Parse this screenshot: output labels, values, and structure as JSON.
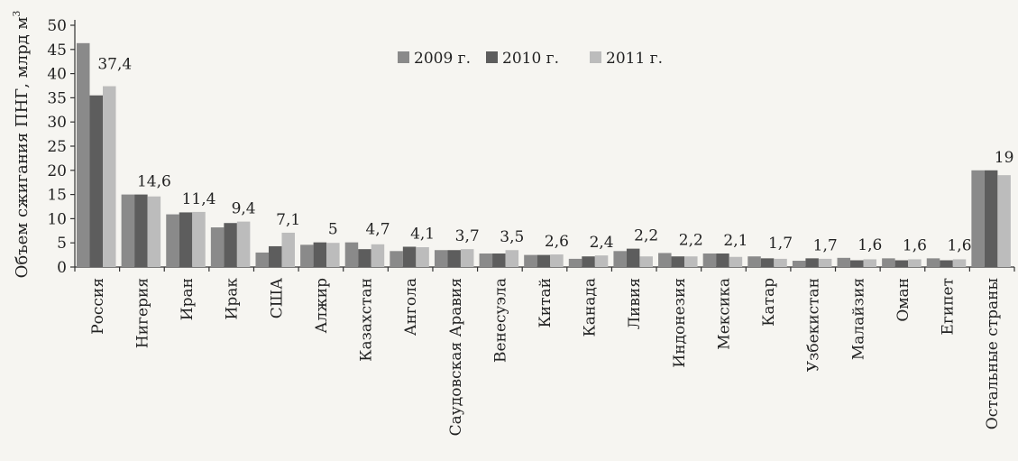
{
  "chart_data": {
    "type": "bar",
    "ylabel": "Объем сжигания ПНГ, млрд м",
    "ylabel_superscript": "3",
    "ylim": [
      0,
      50
    ],
    "yticks": [
      0,
      5,
      10,
      15,
      20,
      25,
      30,
      35,
      40,
      45,
      50
    ],
    "grid": false,
    "legend_position": "top-center",
    "categories": [
      "Россия",
      "Нигерия",
      "Иран",
      "Ирак",
      "США",
      "Алжир",
      "Казахстан",
      "Ангола",
      "Саудовская Аравия",
      "Венесуэла",
      "Китай",
      "Канада",
      "Ливия",
      "Индонезия",
      "Мексика",
      "Катар",
      "Узбекистан",
      "Малайзия",
      "Оман",
      "Египет",
      "Остальные страны"
    ],
    "series": [
      {
        "name": "2009 г.",
        "color": "#8a8a8a",
        "values": [
          46.3,
          15.0,
          10.9,
          8.2,
          3.0,
          4.6,
          5.1,
          3.3,
          3.5,
          2.8,
          2.5,
          1.7,
          3.3,
          2.9,
          2.8,
          2.2,
          1.3,
          1.9,
          1.8,
          1.8,
          20.0
        ]
      },
      {
        "name": "2010 г.",
        "color": "#5d5d5d",
        "values": [
          35.5,
          15.0,
          11.3,
          9.1,
          4.3,
          5.1,
          3.7,
          4.2,
          3.5,
          2.8,
          2.5,
          2.2,
          3.8,
          2.2,
          2.8,
          1.8,
          1.8,
          1.4,
          1.4,
          1.4,
          20.0
        ]
      },
      {
        "name": "2011 г.",
        "color": "#bcbcbc",
        "values": [
          37.4,
          14.6,
          11.4,
          9.4,
          7.1,
          5.0,
          4.7,
          4.1,
          3.7,
          3.5,
          2.6,
          2.4,
          2.2,
          2.2,
          2.1,
          1.7,
          1.7,
          1.6,
          1.6,
          1.6,
          19.0
        ]
      }
    ],
    "data_labels": [
      "37,4",
      "14,6",
      "11,4",
      "9,4",
      "7,1",
      "5",
      "4,7",
      "4,1",
      "3,7",
      "3,5",
      "2,6",
      "2,4",
      "2,2",
      "2,2",
      "2,1",
      "1,7",
      "1,7",
      "1,6",
      "1,6",
      "1,6",
      "19"
    ]
  }
}
